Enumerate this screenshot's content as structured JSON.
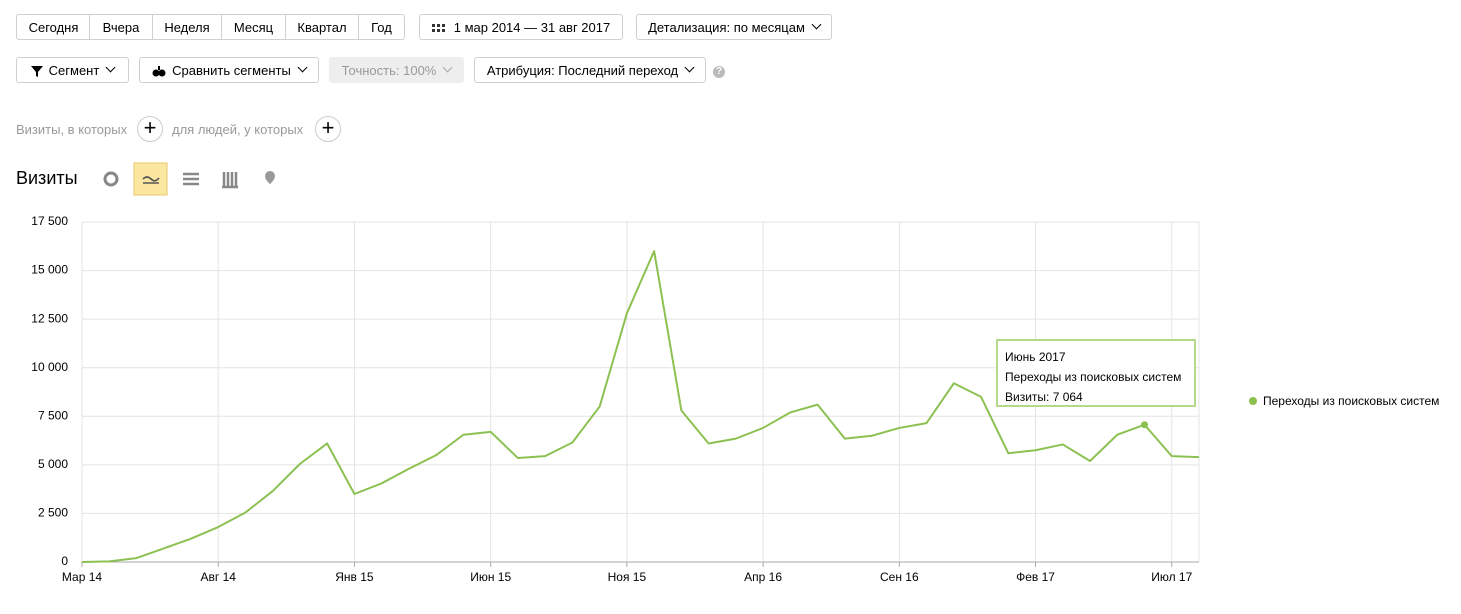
{
  "toolbar": {
    "periods": [
      "Сегодня",
      "Вчера",
      "Неделя",
      "Месяц",
      "Квартал",
      "Год"
    ],
    "date_range": "1 мар 2014 — 31 авг 2017",
    "detail": "Детализация: по месяцам"
  },
  "filters": {
    "segment": "Сегмент",
    "compare": "Сравнить сегменты",
    "accuracy": "Точность: 100%",
    "attribution": "Атрибуция: Последний переход"
  },
  "conditions": {
    "visits": "Визиты, в которых",
    "people": "для людей, у которых"
  },
  "report_title": "Визиты",
  "chart_data": {
    "type": "line",
    "categories": [
      "Мар 14",
      null,
      null,
      null,
      null,
      "Авг 14",
      null,
      null,
      null,
      null,
      "Янв 15",
      null,
      null,
      null,
      null,
      "Июн 15",
      null,
      null,
      null,
      null,
      "Ноя 15",
      null,
      null,
      null,
      null,
      "Апр 16",
      null,
      null,
      null,
      null,
      "Сен 16",
      null,
      null,
      null,
      null,
      "Фев 17",
      null,
      null,
      null,
      null,
      "Июл 17",
      null
    ],
    "series": [
      {
        "name": "Переходы из поисковых систем",
        "color": "#8cc152",
        "values": [
          0,
          30,
          200,
          700,
          1200,
          1800,
          2550,
          3650,
          5050,
          6100,
          3500,
          4050,
          4800,
          5500,
          6550,
          6700,
          5350,
          5450,
          6150,
          8000,
          12800,
          16000,
          7800,
          6100,
          6350,
          6900,
          7700,
          8100,
          6350,
          6500,
          6900,
          7150,
          9200,
          8500,
          5600,
          5750,
          6050,
          5200,
          6550,
          7064,
          5450,
          5400
        ]
      }
    ],
    "ylim": [
      0,
      17500
    ],
    "yticks": [
      0,
      {
        "value": 2500,
        "label": "2 500"
      },
      {
        "value": 5000,
        "label": "5 000"
      },
      {
        "value": 7500,
        "label": "7 500"
      },
      {
        "value": 10000,
        "label": "10 000"
      },
      {
        "value": 12500,
        "label": "12 500"
      },
      {
        "value": 15000,
        "label": "15 000"
      },
      {
        "value": 17500,
        "label": "17 500"
      }
    ],
    "grid": true,
    "legend": "right",
    "highlight_index": 39,
    "tooltip": {
      "title": "Июнь 2017",
      "text": "Визиты: 7 064"
    }
  }
}
